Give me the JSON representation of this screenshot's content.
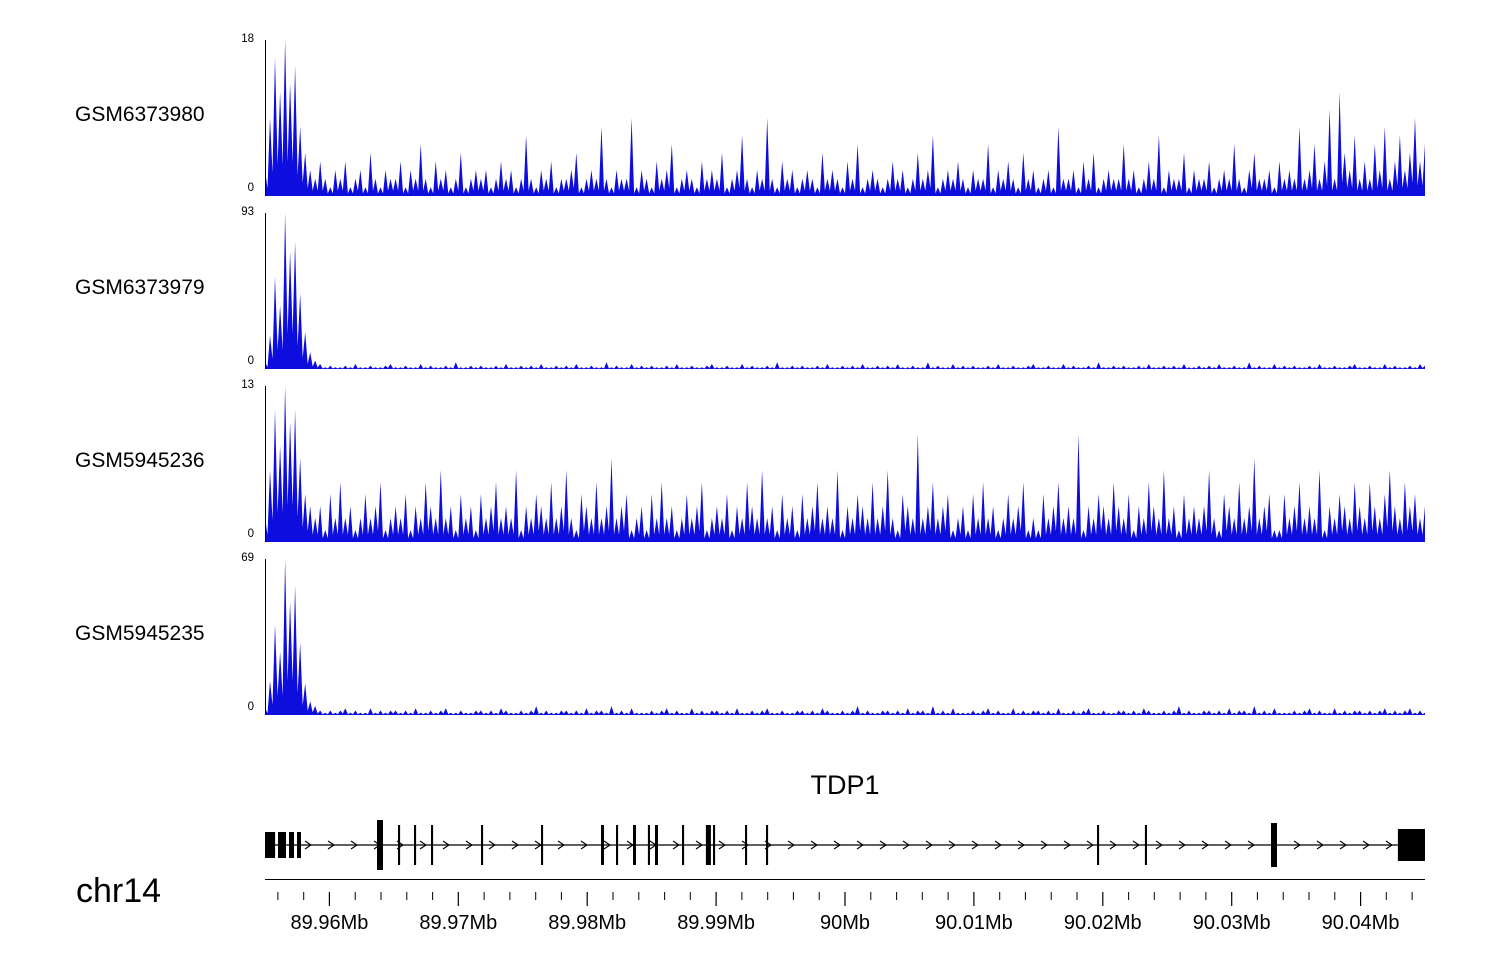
{
  "chart_data": {
    "type": "area",
    "subtype": "genome-coverage-tracks",
    "x_unit": "Mb",
    "region": {
      "chrom": "chr14",
      "start_mb": 89.955,
      "end_mb": 90.045
    },
    "signal_color": "#0d0ddd",
    "tracks": [
      {
        "name": "GSM6373980",
        "ymax": 18,
        "ymax_label": "18",
        "ymin_label": "0",
        "values": [
          3,
          9,
          16,
          12,
          18,
          13,
          15,
          8,
          5,
          3,
          2,
          4,
          2,
          1,
          3,
          2,
          4,
          1,
          2,
          3,
          1,
          5,
          2,
          1,
          3,
          2,
          2,
          4,
          1,
          3,
          2,
          6,
          2,
          1,
          4,
          2,
          3,
          1,
          2,
          5,
          1,
          2,
          3,
          2,
          3,
          1,
          2,
          4,
          2,
          3,
          1,
          2,
          7,
          2,
          1,
          3,
          2,
          4,
          1,
          2,
          2,
          3,
          5,
          1,
          2,
          3,
          2,
          8,
          2,
          1,
          3,
          2,
          2,
          9,
          1,
          3,
          2,
          1,
          4,
          2,
          3,
          6,
          1,
          2,
          3,
          2,
          1,
          4,
          2,
          3,
          2,
          5,
          1,
          2,
          3,
          7,
          2,
          1,
          3,
          2,
          9,
          2,
          1,
          4,
          2,
          3,
          1,
          2,
          3,
          2,
          1,
          5,
          2,
          3,
          2,
          1,
          4,
          2,
          6,
          1,
          2,
          3,
          2,
          1,
          2,
          4,
          2,
          3,
          1,
          2,
          5,
          2,
          3,
          7,
          1,
          2,
          3,
          2,
          4,
          2,
          1,
          3,
          2,
          2,
          6,
          1,
          3,
          2,
          4,
          2,
          1,
          5,
          2,
          3,
          1,
          2,
          3,
          1,
          8,
          2,
          2,
          3,
          1,
          4,
          2,
          5,
          1,
          2,
          3,
          2,
          2,
          6,
          2,
          3,
          1,
          2,
          4,
          2,
          7,
          1,
          3,
          2,
          2,
          5,
          1,
          3,
          2,
          2,
          4,
          1,
          2,
          3,
          2,
          6,
          2,
          1,
          3,
          5,
          2,
          2,
          3,
          1,
          4,
          2,
          3,
          2,
          8,
          2,
          3,
          6,
          2,
          4,
          10,
          2,
          12,
          5,
          3,
          7,
          2,
          4,
          2,
          6,
          3,
          8,
          2,
          4,
          7,
          3,
          5,
          9,
          4,
          6
        ]
      },
      {
        "name": "GSM6373979",
        "ymax": 93,
        "ymax_label": "93",
        "ymin_label": "0",
        "values": [
          4,
          20,
          55,
          38,
          93,
          70,
          76,
          45,
          22,
          10,
          5,
          3,
          1,
          2,
          1,
          1,
          2,
          1,
          3,
          1,
          1,
          2,
          1,
          1,
          2,
          3,
          1,
          1,
          2,
          1,
          1,
          3,
          1,
          2,
          1,
          1,
          2,
          1,
          4,
          1,
          1,
          2,
          1,
          2,
          1,
          1,
          2,
          1,
          3,
          1,
          1,
          2,
          1,
          2,
          1,
          3,
          1,
          1,
          2,
          1,
          2,
          1,
          3,
          1,
          1,
          2,
          1,
          1,
          4,
          1,
          2,
          1,
          1,
          3,
          1,
          2,
          1,
          2,
          1,
          1,
          2,
          1,
          3,
          1,
          1,
          2,
          1,
          1,
          2,
          3,
          1,
          1,
          2,
          1,
          1,
          3,
          1,
          2,
          1,
          1,
          2,
          1,
          4,
          1,
          1,
          2,
          1,
          2,
          1,
          1,
          2,
          1,
          3,
          1,
          1,
          2,
          1,
          2,
          1,
          3,
          1,
          1,
          2,
          1,
          2,
          1,
          3,
          1,
          1,
          2,
          1,
          1,
          4,
          1,
          2,
          1,
          1,
          3,
          1,
          2,
          1,
          2,
          1,
          1,
          2,
          1,
          3,
          1,
          1,
          2,
          1,
          1,
          2,
          3,
          1,
          1,
          2,
          1,
          1,
          3,
          1,
          2,
          1,
          1,
          2,
          1,
          4,
          1,
          1,
          2,
          1,
          2,
          1,
          1,
          2,
          1,
          3,
          1,
          1,
          2,
          1,
          2,
          1,
          3,
          1,
          1,
          2,
          1,
          2,
          1,
          3,
          1,
          1,
          2,
          1,
          1,
          4,
          1,
          2,
          1,
          1,
          3,
          1,
          2,
          1,
          2,
          1,
          1,
          2,
          1,
          3,
          1,
          1,
          2,
          1,
          1,
          2,
          3,
          1,
          1,
          2,
          1,
          1,
          3,
          1,
          2,
          1,
          1,
          2,
          1,
          3,
          2
        ]
      },
      {
        "name": "GSM5945236",
        "ymax": 13,
        "ymax_label": "13",
        "ymin_label": "0",
        "values": [
          2,
          6,
          11,
          8,
          13,
          10,
          11,
          7,
          4,
          3,
          2,
          3,
          1,
          4,
          2,
          5,
          2,
          3,
          1,
          2,
          4,
          2,
          3,
          5,
          1,
          2,
          3,
          2,
          4,
          1,
          3,
          2,
          5,
          3,
          2,
          6,
          2,
          3,
          1,
          4,
          2,
          3,
          1,
          4,
          2,
          3,
          5,
          2,
          3,
          2,
          6,
          1,
          3,
          2,
          4,
          3,
          2,
          5,
          2,
          3,
          6,
          2,
          1,
          4,
          3,
          2,
          5,
          2,
          3,
          7,
          2,
          3,
          4,
          1,
          2,
          3,
          1,
          4,
          2,
          5,
          2,
          3,
          1,
          2,
          4,
          2,
          3,
          5,
          1,
          2,
          3,
          2,
          4,
          1,
          3,
          2,
          5,
          3,
          2,
          6,
          2,
          3,
          1,
          4,
          2,
          3,
          1,
          4,
          2,
          3,
          5,
          2,
          3,
          2,
          6,
          1,
          3,
          2,
          4,
          3,
          2,
          5,
          2,
          3,
          6,
          2,
          1,
          4,
          3,
          2,
          9,
          2,
          3,
          5,
          2,
          3,
          4,
          1,
          2,
          3,
          1,
          4,
          2,
          5,
          2,
          3,
          1,
          2,
          4,
          2,
          3,
          5,
          1,
          2,
          1,
          4,
          2,
          3,
          5,
          2,
          3,
          2,
          9,
          1,
          3,
          2,
          4,
          3,
          2,
          5,
          3,
          2,
          4,
          1,
          3,
          2,
          5,
          3,
          2,
          6,
          2,
          3,
          1,
          4,
          2,
          3,
          2,
          3,
          6,
          2,
          1,
          4,
          3,
          2,
          5,
          2,
          3,
          7,
          2,
          3,
          4,
          1,
          1,
          4,
          2,
          3,
          5,
          2,
          3,
          2,
          6,
          1,
          3,
          2,
          4,
          3,
          2,
          5,
          3,
          2,
          5,
          3,
          2,
          4,
          6,
          3,
          2,
          5,
          3,
          4,
          2,
          3
        ]
      },
      {
        "name": "GSM5945235",
        "ymax": 69,
        "ymax_label": "69",
        "ymin_label": "0",
        "values": [
          3,
          15,
          40,
          28,
          69,
          50,
          57,
          32,
          14,
          6,
          4,
          2,
          1,
          2,
          1,
          2,
          3,
          1,
          2,
          1,
          1,
          3,
          1,
          2,
          1,
          2,
          2,
          1,
          2,
          1,
          3,
          1,
          1,
          2,
          1,
          2,
          3,
          1,
          1,
          2,
          1,
          1,
          2,
          2,
          1,
          2,
          1,
          3,
          2,
          1,
          1,
          2,
          1,
          2,
          4,
          1,
          2,
          1,
          1,
          2,
          2,
          1,
          2,
          1,
          3,
          1,
          2,
          2,
          1,
          4,
          1,
          2,
          1,
          3,
          1,
          1,
          1,
          2,
          1,
          2,
          3,
          1,
          2,
          1,
          1,
          3,
          1,
          2,
          1,
          2,
          2,
          1,
          2,
          1,
          3,
          1,
          1,
          2,
          1,
          2,
          3,
          1,
          1,
          2,
          1,
          1,
          2,
          2,
          1,
          2,
          1,
          3,
          2,
          1,
          1,
          2,
          1,
          2,
          4,
          1,
          2,
          1,
          1,
          2,
          2,
          1,
          2,
          1,
          3,
          1,
          2,
          2,
          1,
          4,
          1,
          2,
          1,
          3,
          1,
          1,
          1,
          2,
          1,
          2,
          3,
          1,
          2,
          1,
          1,
          3,
          1,
          2,
          1,
          2,
          2,
          1,
          2,
          1,
          3,
          1,
          1,
          2,
          1,
          2,
          3,
          1,
          1,
          2,
          1,
          1,
          2,
          2,
          1,
          2,
          1,
          3,
          2,
          1,
          1,
          2,
          1,
          2,
          4,
          1,
          2,
          1,
          1,
          2,
          2,
          1,
          2,
          1,
          3,
          1,
          2,
          2,
          1,
          4,
          1,
          2,
          1,
          3,
          1,
          1,
          1,
          2,
          1,
          2,
          3,
          1,
          2,
          1,
          1,
          3,
          1,
          2,
          1,
          2,
          2,
          1,
          2,
          1,
          2,
          3,
          1,
          2,
          1,
          2,
          3,
          1,
          2,
          1
        ]
      }
    ],
    "gene": {
      "name": "TDP1",
      "strand": "+",
      "exons": [
        {
          "start_mb": 89.955,
          "width_bp": 780,
          "h": "m"
        },
        {
          "start_mb": 89.95601,
          "width_bp": 620,
          "h": "m"
        },
        {
          "start_mb": 89.95686,
          "width_bp": 390,
          "h": "m"
        },
        {
          "start_mb": 89.95748,
          "width_bp": 310,
          "h": "m"
        },
        {
          "start_mb": 89.96369,
          "width_bp": 465,
          "h": "t"
        },
        {
          "start_mb": 89.96532,
          "width_bp": 160,
          "h": "s"
        },
        {
          "start_mb": 89.96656,
          "width_bp": 160,
          "h": "s"
        },
        {
          "start_mb": 89.96788,
          "width_bp": 160,
          "h": "s"
        },
        {
          "start_mb": 89.97176,
          "width_bp": 160,
          "h": "s"
        },
        {
          "start_mb": 89.97641,
          "width_bp": 160,
          "h": "s"
        },
        {
          "start_mb": 89.98107,
          "width_bp": 230,
          "h": "s"
        },
        {
          "start_mb": 89.98223,
          "width_bp": 160,
          "h": "s"
        },
        {
          "start_mb": 89.98355,
          "width_bp": 230,
          "h": "s"
        },
        {
          "start_mb": 89.98471,
          "width_bp": 160,
          "h": "s"
        },
        {
          "start_mb": 89.98526,
          "width_bp": 230,
          "h": "s"
        },
        {
          "start_mb": 89.98735,
          "width_bp": 160,
          "h": "s"
        },
        {
          "start_mb": 89.98921,
          "width_bp": 390,
          "h": "s"
        },
        {
          "start_mb": 89.98976,
          "width_bp": 160,
          "h": "s"
        },
        {
          "start_mb": 89.99224,
          "width_bp": 160,
          "h": "s"
        },
        {
          "start_mb": 89.99387,
          "width_bp": 160,
          "h": "s"
        },
        {
          "start_mb": 90.01955,
          "width_bp": 160,
          "h": "s"
        },
        {
          "start_mb": 90.02327,
          "width_bp": 160,
          "h": "s"
        },
        {
          "start_mb": 90.03305,
          "width_bp": 465,
          "h": "st"
        },
        {
          "start_mb": 90.0429,
          "width_bp": 2170,
          "h": "xl"
        }
      ]
    },
    "axis": {
      "chrom_label": "chr14",
      "minor_tick_step_mb": 0.002,
      "ticks": [
        {
          "mb": 89.96,
          "label": "89.96Mb"
        },
        {
          "mb": 89.97,
          "label": "89.97Mb"
        },
        {
          "mb": 89.98,
          "label": "89.98Mb"
        },
        {
          "mb": 89.99,
          "label": "89.99Mb"
        },
        {
          "mb": 90.0,
          "label": "90Mb"
        },
        {
          "mb": 90.01,
          "label": "90.01Mb"
        },
        {
          "mb": 90.02,
          "label": "90.02Mb"
        },
        {
          "mb": 90.03,
          "label": "90.03Mb"
        },
        {
          "mb": 90.04,
          "label": "90.04Mb"
        }
      ]
    }
  }
}
